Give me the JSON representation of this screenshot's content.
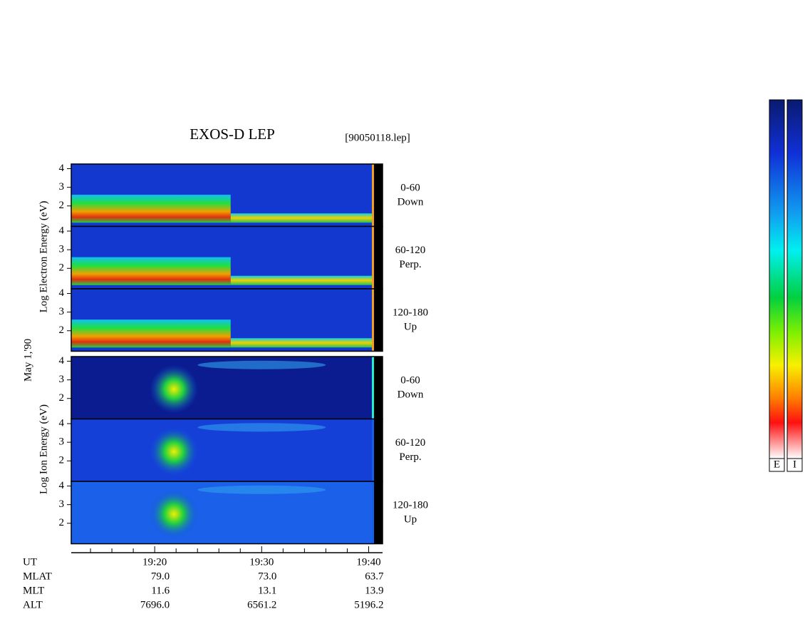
{
  "chart_data": {
    "type": "spectrogram",
    "title": "EXOS-D LEP",
    "file_label": "[90050118.lep]",
    "date_label": "May 1,'90",
    "groups": [
      {
        "name": "Log Electron Energy (eV)",
        "panels": [
          {
            "angle": "0-60",
            "direction": "Down"
          },
          {
            "angle": "60-120",
            "direction": "Perp."
          },
          {
            "angle": "120-180",
            "direction": "Up"
          }
        ]
      },
      {
        "name": "Log Ion Energy (eV)",
        "panels": [
          {
            "angle": "0-60",
            "direction": "Down"
          },
          {
            "angle": "60-120",
            "direction": "Perp."
          },
          {
            "angle": "120-180",
            "direction": "Up"
          }
        ]
      }
    ],
    "ylim": [
      0.9,
      4.25
    ],
    "yticks": [
      2,
      3,
      4
    ],
    "xlim": [
      12.2,
      40.3
    ],
    "xticks": [
      {
        "value": 20,
        "label": "19:20"
      },
      {
        "value": 30,
        "label": "19:30"
      },
      {
        "value": 40,
        "label": "19:40"
      }
    ],
    "minor_xticks": [
      14,
      16,
      18,
      22,
      24,
      26,
      28,
      32,
      34,
      36,
      38
    ],
    "orbit": {
      "time_row": "UT",
      "rows": [
        {
          "name": "MLAT",
          "values": [
            "79.0",
            "73.0",
            "63.7"
          ]
        },
        {
          "name": "MLT",
          "values": [
            "11.6",
            "13.1",
            "13.9"
          ]
        },
        {
          "name": "ALT",
          "values": [
            "7696.0",
            "6561.2",
            "5196.2"
          ]
        }
      ]
    },
    "colorbars": [
      "E",
      "I"
    ]
  }
}
